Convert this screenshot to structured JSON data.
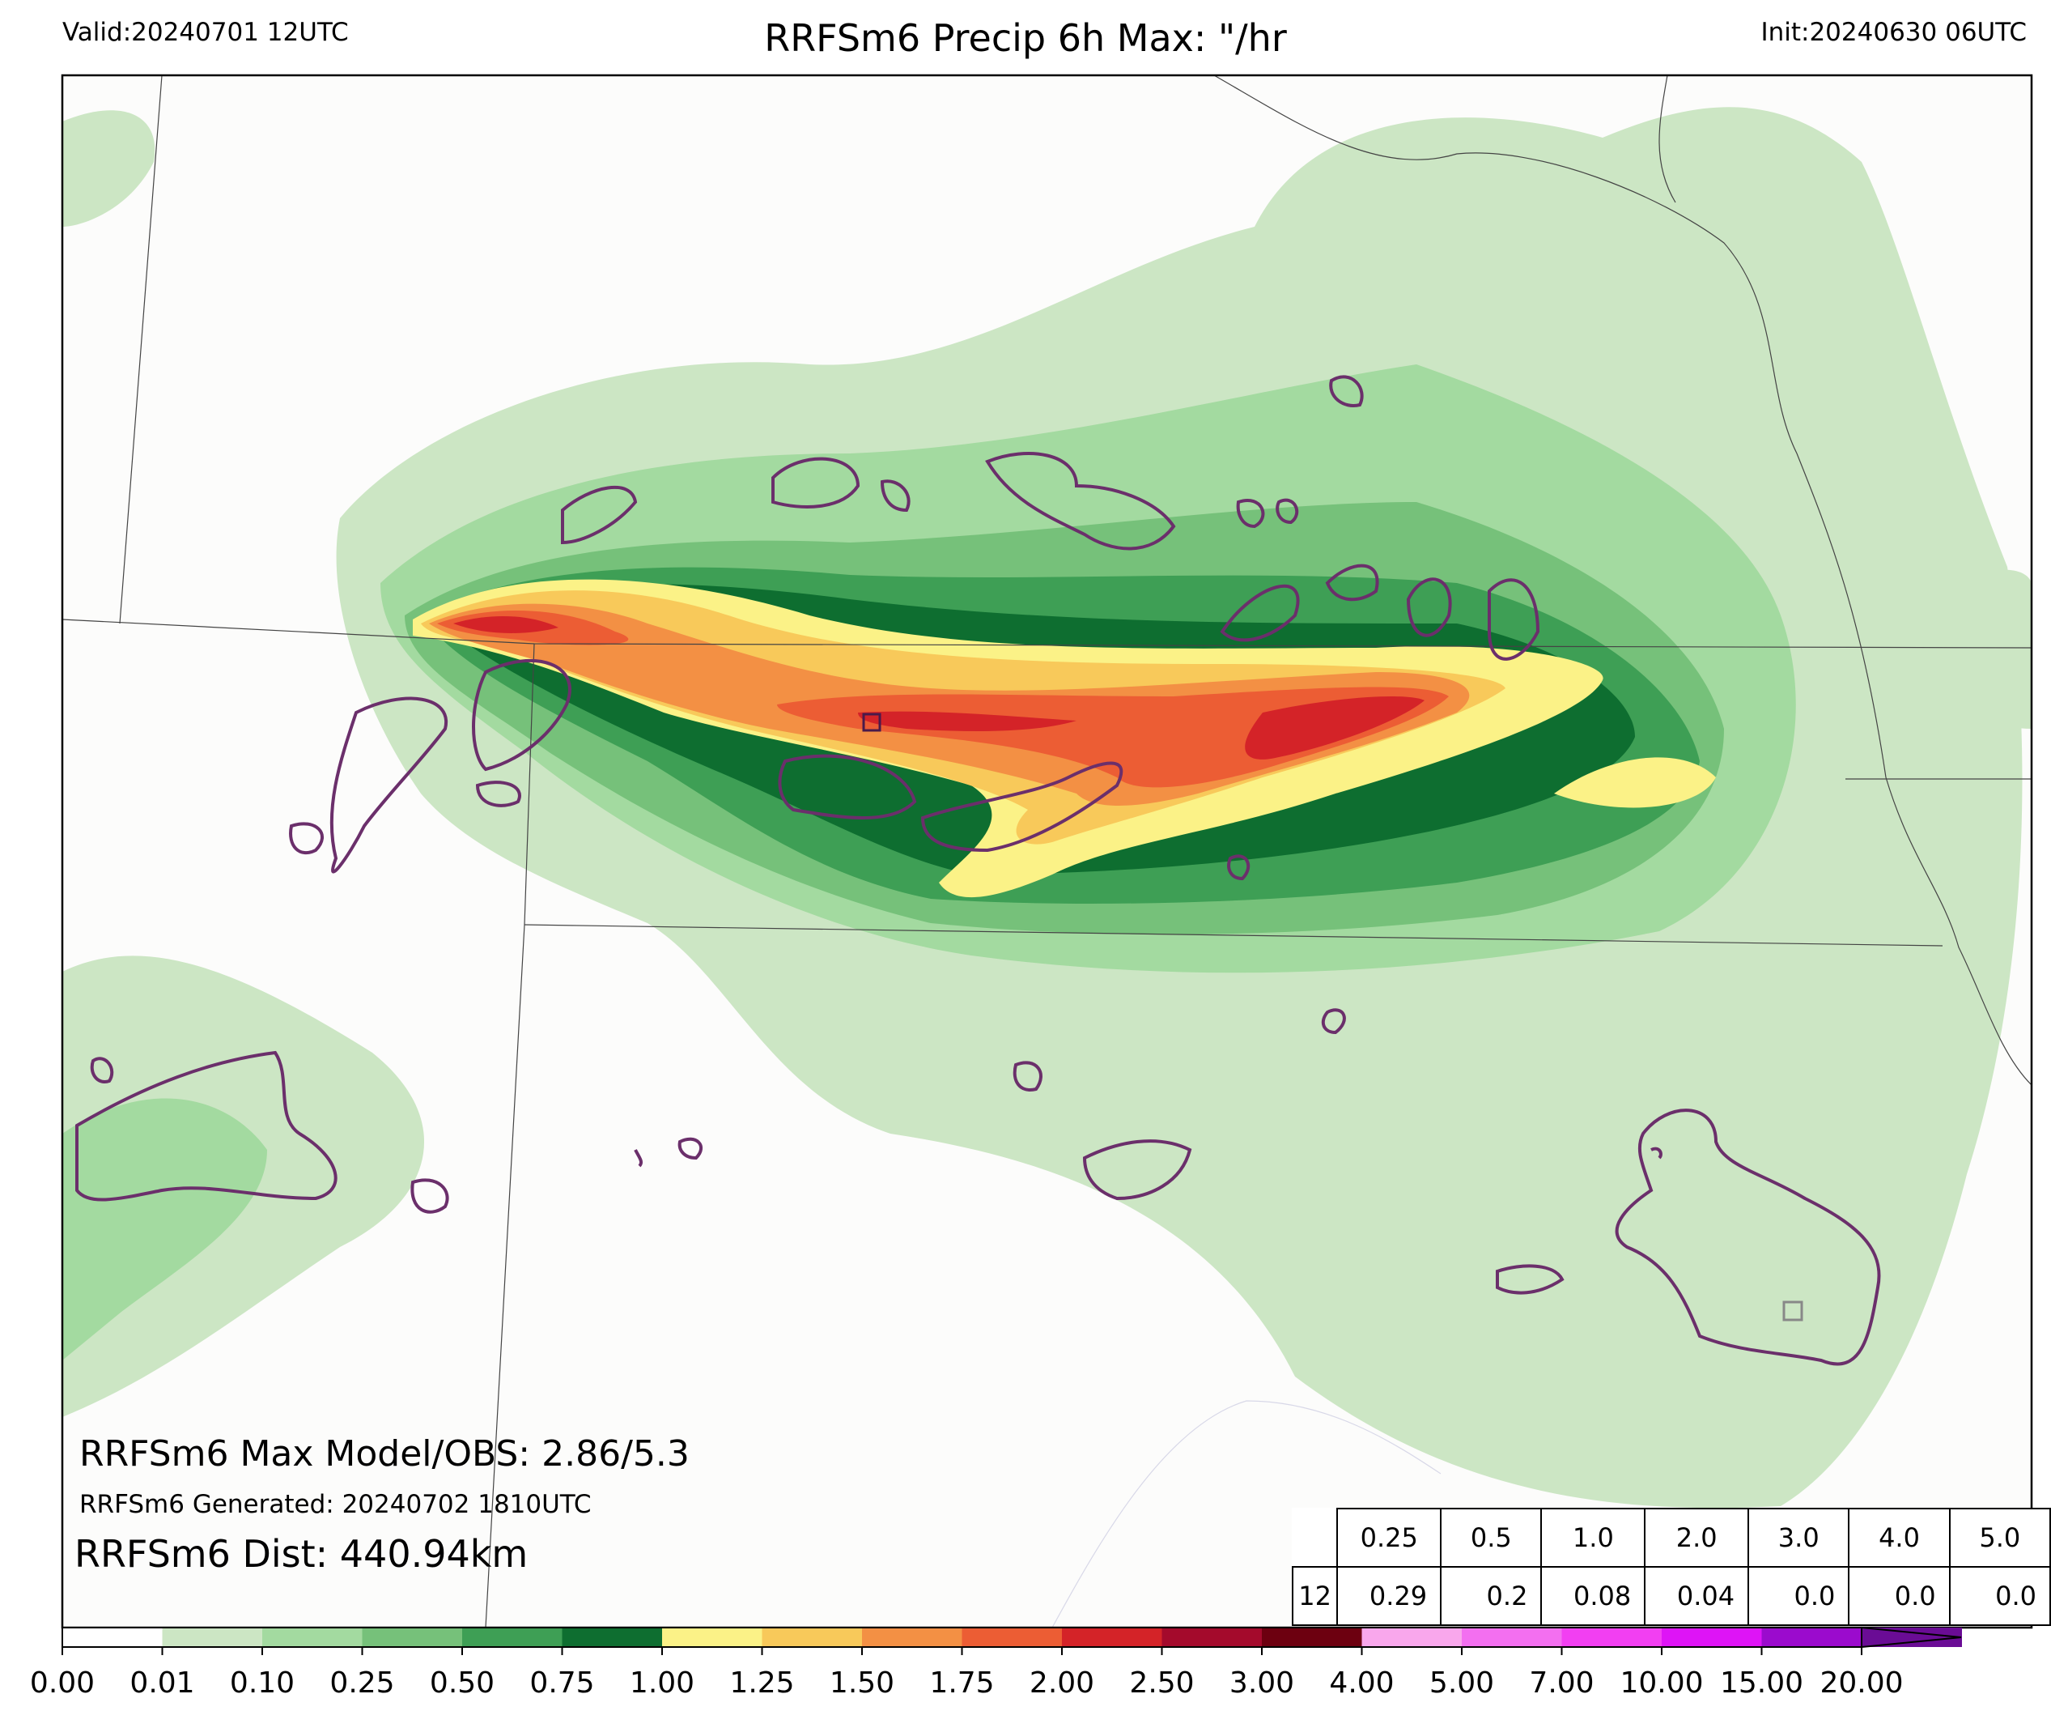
{
  "header": {
    "valid": "Valid:20240701 12UTC",
    "title": "RRFSm6 Precip 6h Max: \"/hr",
    "init": "Init:20240630 06UTC"
  },
  "annotations": {
    "max_line": "RRFSm6 Max Model/OBS: 2.86/5.3",
    "generated_line": "RRFSm6 Generated: 20240702 1810UTC",
    "dist_line": "RRFSm6 Dist: 440.94km"
  },
  "stats_table": {
    "thresholds": [
      "0.25",
      "0.5",
      "1.0",
      "2.0",
      "3.0",
      "4.0",
      "5.0"
    ],
    "hour": "12",
    "values": [
      "0.29",
      "0.2",
      "0.08",
      "0.04",
      "0.0",
      "0.0",
      "0.0"
    ]
  },
  "colorbar": {
    "ticks": [
      "0.00",
      "0.01",
      "0.10",
      "0.25",
      "0.50",
      "0.75",
      "1.00",
      "1.25",
      "1.50",
      "1.75",
      "2.00",
      "2.50",
      "3.00",
      "4.00",
      "5.00",
      "7.00",
      "10.00",
      "15.00",
      "20.00"
    ],
    "colors": [
      "#ffffff",
      "#cce6c4",
      "#a3daa0",
      "#76c17a",
      "#3e9f55",
      "#0e6e30",
      "#fbf287",
      "#f8c95a",
      "#f39044",
      "#ec5d34",
      "#d42328",
      "#a40a2c",
      "#6d0010",
      "#f9a7ec",
      "#f36ff0",
      "#f23ff2",
      "#de14f6",
      "#9b0bcd",
      "#6a0c95"
    ]
  },
  "chart_data": {
    "type": "heatmap",
    "title": "RRFSm6 Precip 6h Max: \"/hr",
    "valid_time": "20240701 12UTC",
    "init_time": "20240630 06UTC",
    "units": "\"/hr",
    "max_model": 2.86,
    "max_obs": 5.3,
    "legend_levels": [
      0.0,
      0.01,
      0.1,
      0.25,
      0.5,
      0.75,
      1.0,
      1.25,
      1.5,
      1.75,
      2.0,
      2.5,
      3.0,
      4.0,
      5.0,
      7.0,
      10.0,
      15.0,
      20.0
    ],
    "contour_overlay_color": "#6b2f6b"
  }
}
